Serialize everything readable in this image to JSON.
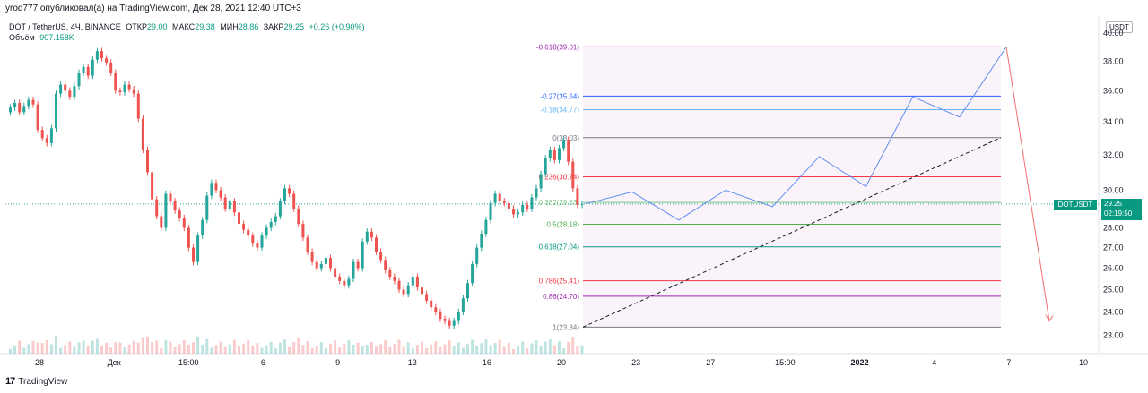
{
  "header": {
    "published": "yrod777 опубликовал(а) на TradingView.com, Дек 28, 2021 12:40 UTC+3"
  },
  "legend": {
    "symbol": "DOT / TetherUS, 4Ч, BINANCE",
    "open_label": "ОТКР",
    "open_value": "29.00",
    "high_label": "МАКС",
    "high_value": "29.38",
    "low_label": "МИН",
    "low_value": "28.86",
    "close_label": "ЗАКР",
    "close_value": "29.25",
    "change": "+0.26 (+0.90%)",
    "volume_label": "Объём",
    "volume_value": "907.158K"
  },
  "currency_badge": "USDT",
  "price_tag": {
    "symbol": "DOTUSDT",
    "price": "29.25",
    "countdown": "02:19:50"
  },
  "footer": {
    "logo": "17",
    "brand": "TradingView"
  },
  "colors": {
    "up": "#26a69a",
    "down": "#ef5350",
    "fib_violet": "#9c27b0",
    "fib_blue": "#2962ff",
    "fib_lightblue": "#64b5f6",
    "fib_gray": "#787b86",
    "fib_red": "#f23645",
    "fib_green": "#4caf50",
    "fib_teal": "#089981",
    "projection": "#5b8def",
    "arrow": "#f26d6d"
  },
  "chart_data": {
    "type": "candlestick",
    "y_axis_ticks": [
      "40.00",
      "38.00",
      "36.00",
      "34.00",
      "32.00",
      "30.00",
      "28.00",
      "27.00",
      "26.00",
      "25.00",
      "24.00",
      "23.00"
    ],
    "y_scale": "log",
    "ylim": [
      22.6,
      40.6
    ],
    "x_axis_ticks": [
      "28",
      "Дек",
      "15:00",
      "6",
      "9",
      "13",
      "16",
      "20",
      "23",
      "27",
      "15:00",
      "2022",
      "4",
      "7",
      "10"
    ],
    "current_price": 29.25,
    "fib_levels": [
      {
        "label": "-0.618(39.01)",
        "value": 39.01,
        "color": "#9c27b0"
      },
      {
        "label": "-0.27(35.64)",
        "value": 35.64,
        "color": "#2962ff"
      },
      {
        "label": "-0.18(34.77)",
        "value": 34.77,
        "color": "#64b5f6"
      },
      {
        "label": "0(33.03)",
        "value": 33.03,
        "color": "#787b86"
      },
      {
        "label": "0.236(30.74)",
        "value": 30.74,
        "color": "#f23645"
      },
      {
        "label": "0.382(29.33)",
        "value": 29.33,
        "color": "#81c784"
      },
      {
        "label": "0.5(28.18)",
        "value": 28.18,
        "color": "#4caf50"
      },
      {
        "label": "0.618(27.04)",
        "value": 27.04,
        "color": "#089981"
      },
      {
        "label": "0.786(25.41)",
        "value": 25.41,
        "color": "#f23645"
      },
      {
        "label": "0.86(24.70)",
        "value": 24.7,
        "color": "#9c27b0"
      },
      {
        "label": "1(23.34)",
        "value": 23.34,
        "color": "#787b86"
      }
    ],
    "candles_close": [
      34.9,
      35.2,
      34.6,
      35.0,
      35.4,
      35.1,
      33.5,
      33.0,
      32.7,
      33.6,
      35.8,
      36.4,
      36.0,
      35.6,
      36.3,
      37.2,
      37.6,
      37.0,
      38.1,
      38.7,
      38.2,
      37.9,
      37.2,
      36.0,
      35.9,
      36.4,
      36.1,
      35.8,
      34.2,
      32.3,
      31.0,
      29.5,
      28.6,
      28.0,
      29.8,
      29.4,
      28.9,
      28.5,
      28.0,
      27.0,
      26.3,
      27.6,
      28.4,
      29.7,
      30.4,
      30.0,
      29.6,
      29.0,
      29.4,
      28.8,
      28.2,
      27.9,
      27.6,
      27.2,
      27.0,
      27.6,
      28.0,
      28.3,
      28.6,
      29.4,
      30.1,
      29.8,
      29.0,
      28.2,
      27.5,
      26.8,
      26.3,
      26.0,
      26.2,
      26.5,
      26.0,
      25.6,
      25.4,
      25.2,
      25.5,
      26.3,
      26.0,
      27.3,
      27.8,
      27.5,
      26.8,
      26.4,
      25.9,
      25.6,
      25.4,
      25.0,
      24.8,
      25.2,
      25.6,
      25.1,
      24.8,
      24.5,
      24.2,
      24.0,
      23.7,
      23.6,
      23.4,
      23.6,
      24.0,
      24.6,
      25.3,
      26.2,
      27.0,
      27.7,
      28.4,
      29.3,
      29.8,
      29.4,
      29.3,
      29.0,
      28.7,
      28.8,
      29.2,
      29.0,
      29.6,
      30.1,
      30.9,
      31.8,
      32.3,
      31.7,
      32.4,
      32.9,
      31.6,
      30.1,
      29.2,
      29.25
    ],
    "projection_path": [
      [
        29.25,
        0
      ],
      [
        29.9,
        1
      ],
      [
        28.4,
        2
      ],
      [
        30.0,
        3
      ],
      [
        29.1,
        4
      ],
      [
        31.9,
        5
      ],
      [
        30.2,
        6
      ],
      [
        35.6,
        7
      ],
      [
        34.3,
        8
      ],
      [
        39.01,
        9
      ]
    ],
    "trendline": {
      "from": 23.34,
      "to": 33.03
    },
    "arrow_target": 23.6
  }
}
